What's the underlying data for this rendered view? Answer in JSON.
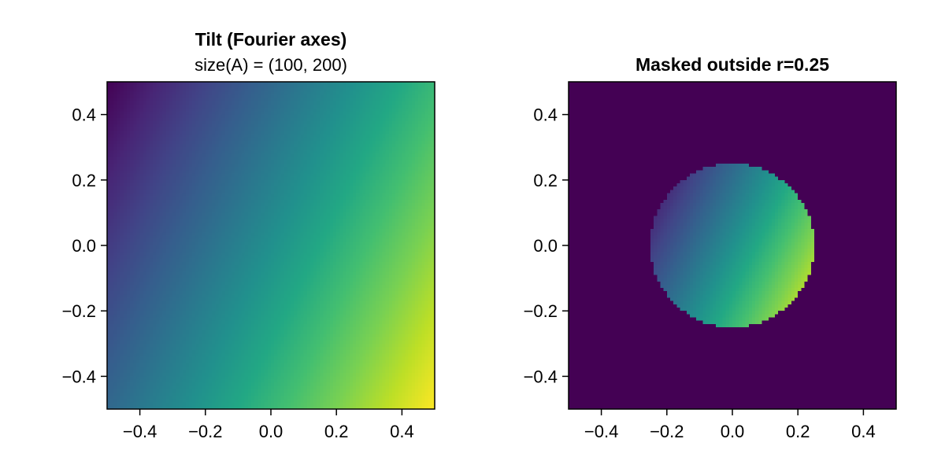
{
  "chart_data": [
    {
      "type": "heatmap",
      "title": "Tilt (Fourier axes)",
      "subtitle": "size(A) = (100, 200)",
      "xlim": [
        -0.5,
        0.5
      ],
      "ylim": [
        -0.5,
        0.5
      ],
      "xticks": [
        -0.4,
        -0.2,
        0.0,
        0.2,
        0.4
      ],
      "yticks": [
        -0.4,
        -0.2,
        0.0,
        0.2,
        0.4
      ],
      "xtick_labels": [
        "−0.4",
        "−0.2",
        "0.0",
        "0.2",
        "0.4"
      ],
      "ytick_labels": [
        "−0.4",
        "−0.2",
        "0.0",
        "0.2",
        "0.4"
      ],
      "colormap": "viridis",
      "grid": false,
      "field": {
        "kind": "linear",
        "x_weight": 2,
        "y_weight": -1
      }
    },
    {
      "type": "heatmap",
      "title": "Masked outside r=0.25",
      "subtitle": "",
      "xlim": [
        -0.5,
        0.5
      ],
      "ylim": [
        -0.5,
        0.5
      ],
      "xticks": [
        -0.4,
        -0.2,
        0.0,
        0.2,
        0.4
      ],
      "yticks": [
        -0.4,
        -0.2,
        0.0,
        0.2,
        0.4
      ],
      "xtick_labels": [
        "−0.4",
        "−0.2",
        "0.0",
        "0.2",
        "0.4"
      ],
      "ytick_labels": [
        "−0.4",
        "−0.2",
        "0.0",
        "0.2",
        "0.4"
      ],
      "colormap": "viridis",
      "grid": false,
      "mask_radius": 0.25,
      "mask_color": "#440154",
      "field": {
        "kind": "linear",
        "x_weight": 2,
        "y_weight": -1
      }
    }
  ]
}
